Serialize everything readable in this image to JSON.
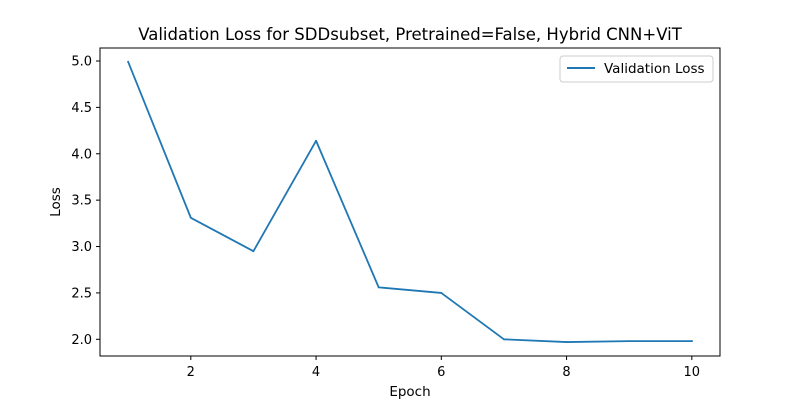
{
  "chart_data": {
    "type": "line",
    "title": "Validation Loss for SDDsubset, Pretrained=False, Hybrid CNN+ViT",
    "xlabel": "Epoch",
    "ylabel": "Loss",
    "x": [
      1,
      2,
      3,
      4,
      5,
      6,
      7,
      8,
      9,
      10
    ],
    "series": [
      {
        "name": "Validation Loss",
        "color": "#1f77b4",
        "values": [
          4.99,
          3.31,
          2.95,
          4.14,
          2.56,
          2.5,
          2.0,
          1.97,
          1.98,
          1.98
        ]
      }
    ],
    "xlim": [
      0.55,
      10.45
    ],
    "ylim": [
      1.82,
      5.14
    ],
    "xticks": [
      2,
      4,
      6,
      8,
      10
    ],
    "xtick_labels": [
      "2",
      "4",
      "6",
      "8",
      "10"
    ],
    "yticks": [
      2.0,
      2.5,
      3.0,
      3.5,
      4.0,
      4.5,
      5.0
    ],
    "ytick_labels": [
      "2.0",
      "2.5",
      "3.0",
      "3.5",
      "4.0",
      "4.5",
      "5.0"
    ],
    "grid": false,
    "legend_position": "top-right"
  }
}
